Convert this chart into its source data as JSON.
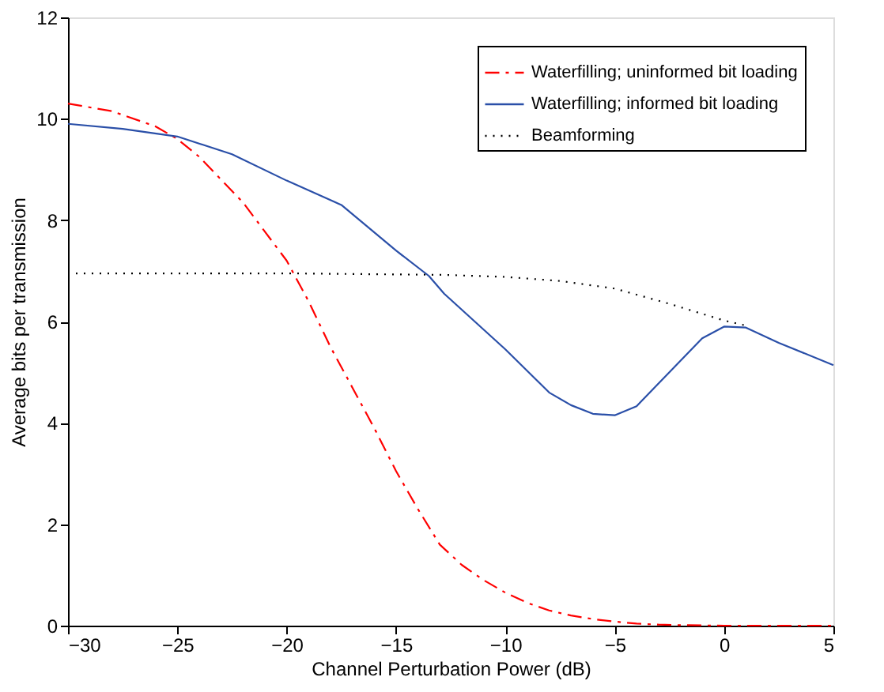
{
  "chart_data": {
    "type": "line",
    "xlabel": "Channel Perturbation Power (dB)",
    "ylabel": "Average bits per transmission",
    "xlim": [
      -30,
      5
    ],
    "xticks": [
      -30,
      -25,
      -20,
      -15,
      -10,
      -5,
      0,
      5
    ],
    "ylim": [
      0,
      12
    ],
    "yticks": [
      0,
      2,
      4,
      6,
      8,
      10,
      12
    ],
    "grid": false,
    "legend": "top right",
    "marker": "none",
    "series": [
      {
        "name": "Waterfilling; uninformed bit loading",
        "color": "#ff0000",
        "line_style": "dashed",
        "x": [
          -30,
          -28,
          -26,
          -25,
          -24,
          -22,
          -20,
          -19,
          -18,
          -17.5,
          -17,
          -16,
          -15,
          -14,
          -13,
          -12,
          -11,
          -10,
          -9,
          -8,
          -7,
          -6,
          -5,
          -4,
          -3,
          -2,
          0,
          5
        ],
        "values": [
          10.3,
          10.15,
          9.85,
          9.6,
          9.25,
          8.35,
          7.2,
          6.4,
          5.5,
          5.1,
          4.7,
          3.9,
          3.05,
          2.3,
          1.6,
          1.2,
          0.9,
          0.65,
          0.45,
          0.3,
          0.2,
          0.13,
          0.08,
          0.04,
          0.02,
          0.01,
          0,
          0
        ]
      },
      {
        "name": "Waterfilling; informed bit loading",
        "color": "#2a4fa8",
        "line_style": "solid",
        "x": [
          -30,
          -27.5,
          -25,
          -22.5,
          -20,
          -17.5,
          -15,
          -13.5,
          -12.8,
          -10,
          -8,
          -7,
          -6,
          -5,
          -4,
          -1,
          0,
          1,
          2.5,
          5
        ],
        "values": [
          9.9,
          9.8,
          9.65,
          9.3,
          8.78,
          8.3,
          7.4,
          6.9,
          6.55,
          5.45,
          4.6,
          4.35,
          4.18,
          4.15,
          4.33,
          5.67,
          5.9,
          5.88,
          5.58,
          5.14
        ]
      },
      {
        "name": "Beamforming",
        "color": "#000000",
        "line_style": "dotted",
        "x": [
          -30,
          -20,
          -12.8,
          -10,
          -7.5,
          -5,
          -2.5,
          0,
          1
        ],
        "values": [
          6.95,
          6.95,
          6.92,
          6.88,
          6.8,
          6.65,
          6.35,
          6.02,
          5.92
        ]
      }
    ]
  }
}
